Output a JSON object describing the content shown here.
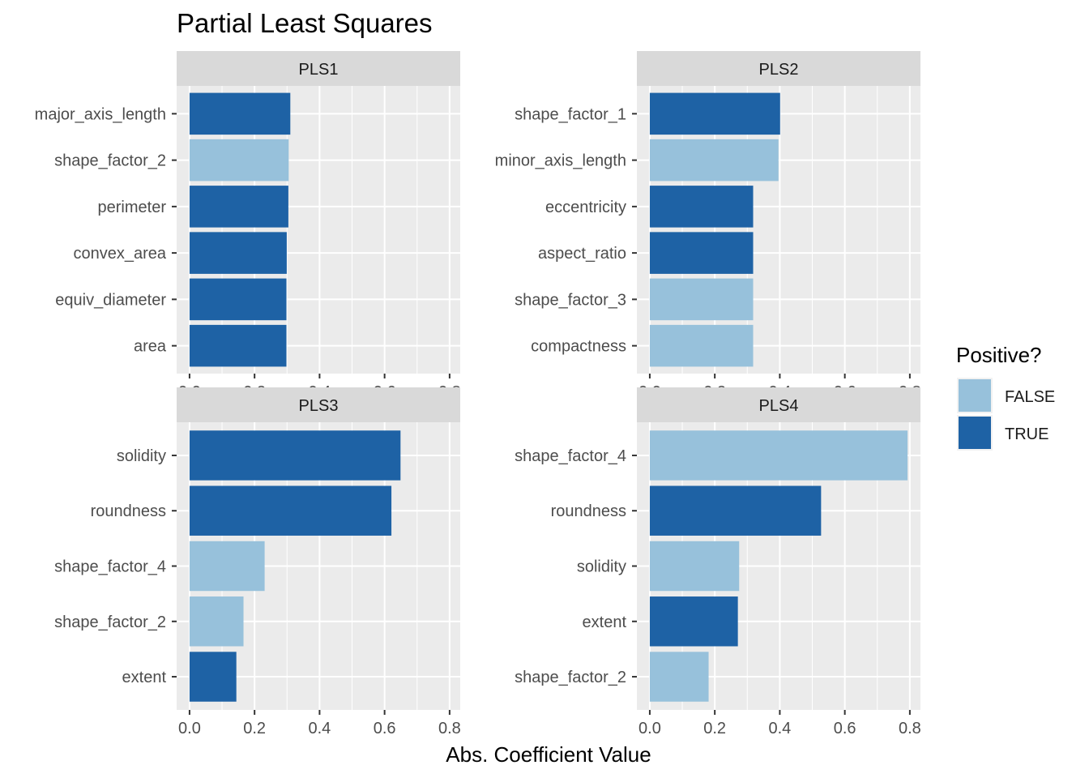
{
  "chart_data": {
    "type": "bar",
    "orientation": "horizontal",
    "title": "Partial Least Squares",
    "xlabel": "Abs. Coefficient Value",
    "ylabel": "",
    "xlim": [
      0,
      0.8
    ],
    "x_ticks": [
      0.0,
      0.2,
      0.4,
      0.6,
      0.8
    ],
    "x_tick_labels": [
      "0.0",
      "0.2",
      "0.4",
      "0.6",
      "0.8"
    ],
    "grid": true,
    "legend": {
      "title": "Positive?",
      "position": "right",
      "entries": [
        {
          "label": "FALSE",
          "color": "#97c1db"
        },
        {
          "label": "TRUE",
          "color": "#1e62a5"
        }
      ]
    },
    "panels": [
      {
        "name": "PLS1",
        "bars": [
          {
            "category": "major_axis_length",
            "value": 0.31,
            "positive": "TRUE"
          },
          {
            "category": "shape_factor_2",
            "value": 0.305,
            "positive": "FALSE"
          },
          {
            "category": "perimeter",
            "value": 0.304,
            "positive": "TRUE"
          },
          {
            "category": "convex_area",
            "value": 0.299,
            "positive": "TRUE"
          },
          {
            "category": "equiv_diameter",
            "value": 0.298,
            "positive": "TRUE"
          },
          {
            "category": "area",
            "value": 0.298,
            "positive": "TRUE"
          }
        ]
      },
      {
        "name": "PLS2",
        "bars": [
          {
            "category": "shape_factor_1",
            "value": 0.401,
            "positive": "TRUE"
          },
          {
            "category": "minor_axis_length",
            "value": 0.396,
            "positive": "FALSE"
          },
          {
            "category": "eccentricity",
            "value": 0.318,
            "positive": "TRUE"
          },
          {
            "category": "aspect_ratio",
            "value": 0.318,
            "positive": "TRUE"
          },
          {
            "category": "shape_factor_3",
            "value": 0.318,
            "positive": "FALSE"
          },
          {
            "category": "compactness",
            "value": 0.318,
            "positive": "FALSE"
          }
        ]
      },
      {
        "name": "PLS3",
        "bars": [
          {
            "category": "solidity",
            "value": 0.649,
            "positive": "TRUE"
          },
          {
            "category": "roundness",
            "value": 0.621,
            "positive": "TRUE"
          },
          {
            "category": "shape_factor_4",
            "value": 0.231,
            "positive": "FALSE"
          },
          {
            "category": "shape_factor_2",
            "value": 0.166,
            "positive": "FALSE"
          },
          {
            "category": "extent",
            "value": 0.144,
            "positive": "TRUE"
          }
        ]
      },
      {
        "name": "PLS4",
        "bars": [
          {
            "category": "shape_factor_4",
            "value": 0.793,
            "positive": "FALSE"
          },
          {
            "category": "roundness",
            "value": 0.527,
            "positive": "TRUE"
          },
          {
            "category": "solidity",
            "value": 0.275,
            "positive": "FALSE"
          },
          {
            "category": "extent",
            "value": 0.271,
            "positive": "TRUE"
          },
          {
            "category": "shape_factor_2",
            "value": 0.181,
            "positive": "FALSE"
          }
        ]
      }
    ]
  }
}
